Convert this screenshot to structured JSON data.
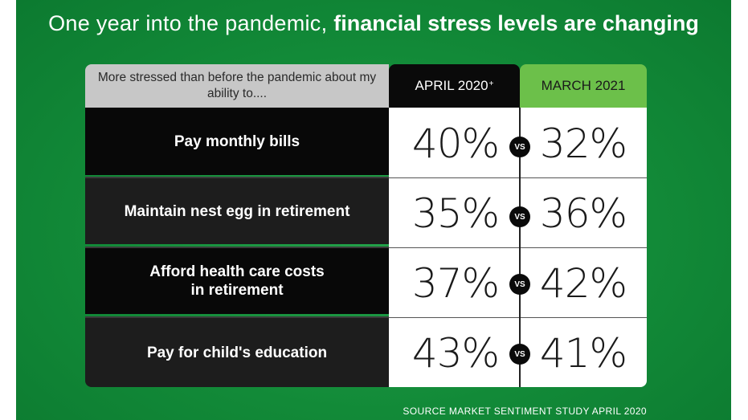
{
  "colors": {
    "background_green": "#128a38",
    "header_gray": "#c7c7c7",
    "april_header": "#0a0a0a",
    "march_header": "#6cc04a",
    "row_dark": "#080808",
    "row_mid": "#1d1d1d"
  },
  "chart_data": {
    "type": "table",
    "title_light": "One year into the pandemic, ",
    "title_bold": "financial stress levels are changing",
    "intro_text": "More stressed than before the pandemic about my ability to....",
    "columns": [
      {
        "label": "APRIL 2020",
        "marker": "+"
      },
      {
        "label": "MARCH 2021",
        "marker": ""
      }
    ],
    "separator": "VS",
    "rows": [
      {
        "label": "Pay monthly bills",
        "april_2020": "40%",
        "march_2021": "32%"
      },
      {
        "label": "Maintain nest egg in retirement",
        "april_2020": "35%",
        "march_2021": "36%"
      },
      {
        "label": "Afford health care costs in retirement",
        "april_2020": "37%",
        "march_2021": "42%"
      },
      {
        "label": "Pay for child's education",
        "april_2020": "43%",
        "march_2021": "41%"
      }
    ],
    "source": "SOURCE MARKET SENTIMENT STUDY APRIL 2020"
  }
}
